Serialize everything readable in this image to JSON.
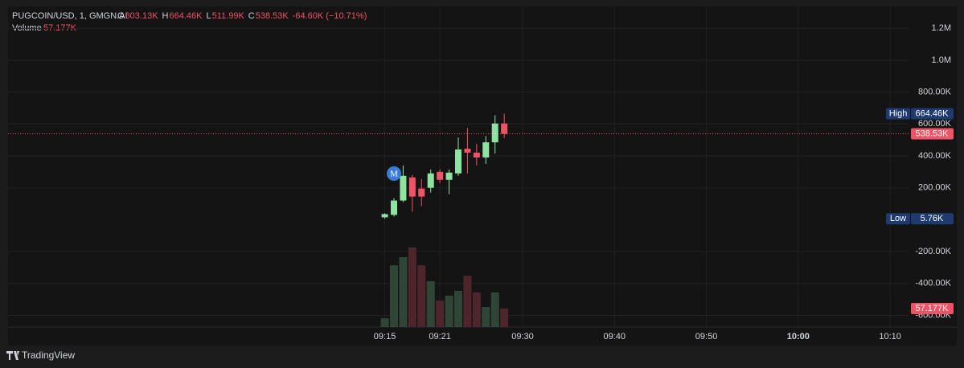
{
  "chart_data": {
    "type": "candlestick",
    "legend": {
      "symbol": "PUGCOIN/USD, 1, GMGN.AI",
      "open_label": "O",
      "open": "603.13K",
      "high_label": "H",
      "high": "664.46K",
      "low_label": "L",
      "low": "511.99K",
      "close_label": "C",
      "close": "538.53K",
      "change": "-64.60K (−10.71%)",
      "volume_label": "Volume",
      "volume": "57.177K"
    },
    "x": [
      "09:15",
      "09:16",
      "09:17",
      "09:18",
      "09:19",
      "09:20",
      "09:21",
      "09:22",
      "09:23",
      "09:24",
      "09:25",
      "09:26",
      "09:27",
      "09:28"
    ],
    "open": [
      15000,
      30000,
      120000,
      265000,
      195000,
      200000,
      300000,
      250000,
      290000,
      445000,
      420000,
      390000,
      485000,
      603130
    ],
    "high": [
      40000,
      135000,
      340000,
      280000,
      255000,
      315000,
      315000,
      315000,
      515000,
      575000,
      475000,
      525000,
      655000,
      664460
    ],
    "low": [
      5760,
      20000,
      110000,
      50000,
      85000,
      170000,
      230000,
      160000,
      275000,
      290000,
      340000,
      350000,
      415000,
      511990
    ],
    "close": [
      35000,
      120000,
      275000,
      145000,
      145000,
      290000,
      250000,
      295000,
      440000,
      420000,
      390000,
      485000,
      603000,
      538530
    ],
    "volume": [
      27000,
      191000,
      216000,
      246000,
      191000,
      142000,
      82000,
      97000,
      112000,
      159000,
      107000,
      62000,
      107000,
      57177
    ],
    "up_color": "#8fe3a1",
    "down_color": "#f05365",
    "volume_up_color": "#2f4636",
    "volume_down_color": "#4e252b",
    "ylim": [
      -673000,
      1337000
    ],
    "yticks": [
      {
        "value": 1200000,
        "label": "1.2M"
      },
      {
        "value": 1000000,
        "label": "1.0M"
      },
      {
        "value": 800000,
        "label": "800.00K"
      },
      {
        "value": 600000,
        "label": "600.00K"
      },
      {
        "value": 400000,
        "label": "400.00K"
      },
      {
        "value": 200000,
        "label": "200.00K"
      },
      {
        "value": -200000,
        "label": "-200.00K"
      },
      {
        "value": -400000,
        "label": "-400.00K"
      },
      {
        "value": -600000,
        "label": "-600.00K"
      }
    ],
    "xlim": [
      "08:34",
      "10:12"
    ],
    "xticks": [
      "09:15",
      "09:21",
      "09:30",
      "09:40",
      "09:50",
      "10:00",
      "10:10"
    ],
    "volume_ylim": [
      0,
      992000
    ],
    "high_marker_label": "High",
    "high_marker_value_label": "664.46K",
    "low_marker_label": "Low",
    "low_marker_value_label": "5.76K",
    "last_price_label": "538.53K",
    "last_volume_label": "57.177K",
    "event_marker": {
      "label": "M",
      "x": "09:16"
    },
    "brand": "TradingView"
  }
}
